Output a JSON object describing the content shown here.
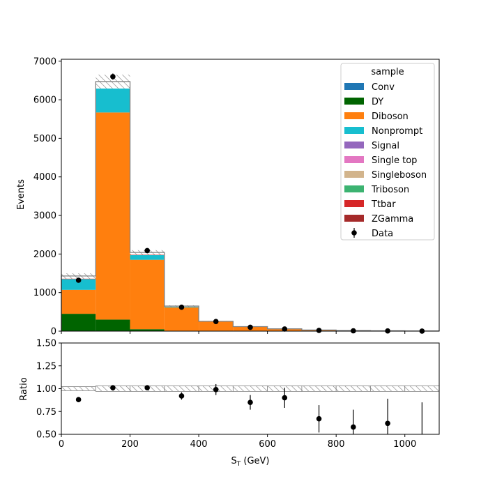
{
  "chart_data": {
    "type": "bar",
    "xlabel": "S_T (GeV)",
    "xlabel_main": "S",
    "xlabel_sub": "T",
    "xlabel_unit": " (GeV)",
    "ylabel_top": "Events",
    "ylabel_bottom": "Ratio",
    "xlim": [
      0,
      1100
    ],
    "ylim_top": [
      0,
      7050
    ],
    "ylim_bottom": [
      0.5,
      1.5
    ],
    "x_ticks": [
      0,
      200,
      400,
      600,
      800,
      1000
    ],
    "x_tick_labels": [
      "0",
      "200",
      "400",
      "600",
      "800",
      "1000"
    ],
    "y_ticks_top": [
      0,
      1000,
      2000,
      3000,
      4000,
      5000,
      6000,
      7000
    ],
    "y_tick_labels_top": [
      "0",
      "1000",
      "2000",
      "3000",
      "4000",
      "5000",
      "6000",
      "7000"
    ],
    "y_ticks_bottom": [
      0.5,
      0.75,
      1.0,
      1.25,
      1.5
    ],
    "y_tick_labels_bottom": [
      "0.50",
      "0.75",
      "1.00",
      "1.25",
      "1.50"
    ],
    "bin_edges": [
      0,
      100,
      200,
      300,
      400,
      500,
      600,
      700,
      800,
      900,
      1000,
      1100
    ],
    "legend_title": "sample",
    "legend_placement": "top-right",
    "series": [
      {
        "name": "Conv",
        "color": "#1f77b4",
        "values": [
          0,
          0,
          0,
          0,
          0,
          0,
          0,
          0,
          0,
          0,
          0
        ]
      },
      {
        "name": "DY",
        "color": "#006400",
        "values": [
          450,
          300,
          50,
          5,
          0,
          0,
          0,
          0,
          0,
          0,
          0
        ]
      },
      {
        "name": "Diboson",
        "color": "#ff7f0e",
        "values": [
          620,
          5370,
          1800,
          610,
          250,
          115,
          60,
          30,
          15,
          8,
          4
        ]
      },
      {
        "name": "Nonprompt",
        "color": "#17becf",
        "values": [
          280,
          640,
          120,
          20,
          5,
          2,
          0,
          0,
          0,
          0,
          0
        ]
      },
      {
        "name": "Signal",
        "color": "#9467bd",
        "values": [
          0,
          0,
          0,
          0,
          0,
          0,
          0,
          0,
          0,
          0,
          0
        ]
      },
      {
        "name": "Single top",
        "color": "#e377c2",
        "values": [
          0,
          0,
          0,
          0,
          0,
          0,
          0,
          0,
          0,
          0,
          0
        ]
      },
      {
        "name": "Singleboson",
        "color": "#d2b48c",
        "values": [
          0,
          0,
          0,
          0,
          0,
          0,
          0,
          0,
          0,
          0,
          0
        ]
      },
      {
        "name": "Triboson",
        "color": "#3cb371",
        "values": [
          0,
          0,
          0,
          0,
          0,
          0,
          0,
          0,
          0,
          0,
          0
        ]
      },
      {
        "name": "Ttbar",
        "color": "#d62728",
        "values": [
          10,
          20,
          10,
          5,
          0,
          0,
          0,
          0,
          0,
          0,
          0
        ]
      },
      {
        "name": "ZGamma",
        "color": "#a52a2a",
        "values": [
          70,
          140,
          60,
          10,
          0,
          0,
          0,
          0,
          0,
          0,
          0
        ]
      }
    ],
    "mc_uncertainty": [
      70,
      180,
      60,
      20,
      8,
      4,
      2,
      1,
      1,
      1,
      1
    ],
    "data": {
      "name": "Data",
      "x": [
        50,
        150,
        250,
        350,
        450,
        550,
        650,
        750,
        850,
        950,
        1050
      ],
      "y": [
        1320,
        6600,
        2090,
        620,
        250,
        100,
        55,
        20,
        9,
        5,
        2
      ],
      "yerr": [
        36,
        81,
        46,
        25,
        16,
        10,
        7,
        4.5,
        3,
        2.2,
        1.4
      ]
    },
    "ratio": {
      "x": [
        50,
        150,
        250,
        350,
        450,
        550,
        650,
        750,
        850,
        950,
        1050
      ],
      "y": [
        0.88,
        1.01,
        1.01,
        0.92,
        0.99,
        0.85,
        0.9,
        0.67,
        0.58,
        0.62,
        0.5
      ],
      "yerr": [
        0.02,
        0.01,
        0.02,
        0.04,
        0.06,
        0.08,
        0.11,
        0.15,
        0.19,
        0.27,
        0.35
      ],
      "band": [
        0.022,
        0.03,
        0.03,
        0.03,
        0.03,
        0.03,
        0.03,
        0.03,
        0.03,
        0.03,
        0.03
      ]
    }
  }
}
